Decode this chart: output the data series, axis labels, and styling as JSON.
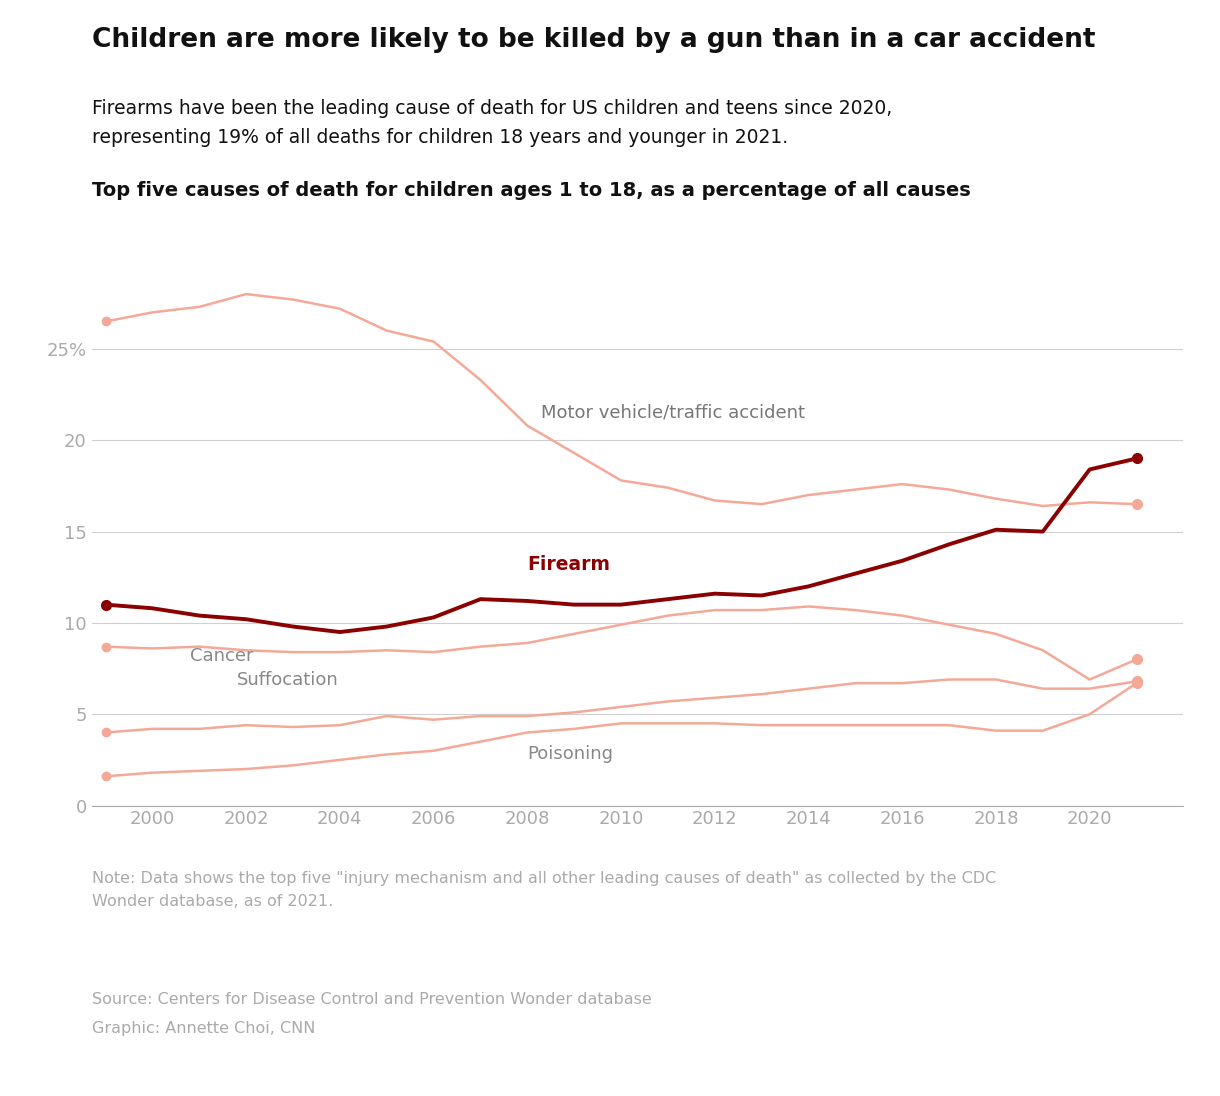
{
  "title": "Children are more likely to be killed by a gun than in a car accident",
  "subtitle1": "Firearms have been the leading cause of death for US children and teens since 2020,",
  "subtitle2": "representing 19% of all deaths for children 18 years and younger in 2021.",
  "chart_title": "Top five causes of death for children ages 1 to 18, as a percentage of all causes",
  "note": "Note: Data shows the top five \"injury mechanism and all other leading causes of death\" as collected by the CDC\nWonder database, as of 2021.",
  "source": "Source: Centers for Disease Control and Prevention Wonder database",
  "graphic": "Graphic: Annette Choi, CNN",
  "years": [
    1999,
    2000,
    2001,
    2002,
    2003,
    2004,
    2005,
    2006,
    2007,
    2008,
    2009,
    2010,
    2011,
    2012,
    2013,
    2014,
    2015,
    2016,
    2017,
    2018,
    2019,
    2020,
    2021
  ],
  "motor_vehicle": [
    26.5,
    27.0,
    27.3,
    28.0,
    27.7,
    27.2,
    26.0,
    25.4,
    23.3,
    20.8,
    19.3,
    17.8,
    17.4,
    16.7,
    16.5,
    17.0,
    17.3,
    17.6,
    17.3,
    16.8,
    16.4,
    16.6,
    16.5
  ],
  "firearm": [
    11.0,
    10.8,
    10.4,
    10.2,
    9.8,
    9.5,
    9.8,
    10.3,
    11.3,
    11.2,
    11.0,
    11.0,
    11.3,
    11.6,
    11.5,
    12.0,
    12.7,
    13.4,
    14.3,
    15.1,
    15.0,
    18.4,
    19.0
  ],
  "cancer": [
    8.7,
    8.6,
    8.7,
    8.5,
    8.4,
    8.4,
    8.5,
    8.4,
    8.7,
    8.9,
    9.4,
    9.9,
    10.4,
    10.7,
    10.7,
    10.9,
    10.7,
    10.4,
    9.9,
    9.4,
    8.5,
    6.9,
    8.0
  ],
  "suffocation": [
    4.0,
    4.2,
    4.2,
    4.4,
    4.3,
    4.4,
    4.9,
    4.7,
    4.9,
    4.9,
    5.1,
    5.4,
    5.7,
    5.9,
    6.1,
    6.4,
    6.7,
    6.7,
    6.9,
    6.9,
    6.4,
    6.4,
    6.8
  ],
  "poisoning": [
    1.6,
    1.8,
    1.9,
    2.0,
    2.2,
    2.5,
    2.8,
    3.0,
    3.5,
    4.0,
    4.2,
    4.5,
    4.5,
    4.5,
    4.4,
    4.4,
    4.4,
    4.4,
    4.4,
    4.1,
    4.1,
    5.0,
    6.7
  ],
  "firearm_color": "#8B0000",
  "other_color": "#F4A998",
  "label_color_other": "#888888",
  "ylim": [
    0,
    30
  ],
  "yticks": [
    0,
    5,
    10,
    15,
    20,
    25
  ],
  "ytick_labels": [
    "0",
    "5",
    "10",
    "15",
    "20",
    "25%"
  ],
  "xticks": [
    2000,
    2002,
    2004,
    2006,
    2008,
    2010,
    2012,
    2014,
    2016,
    2018,
    2020
  ],
  "background_color": "#ffffff"
}
